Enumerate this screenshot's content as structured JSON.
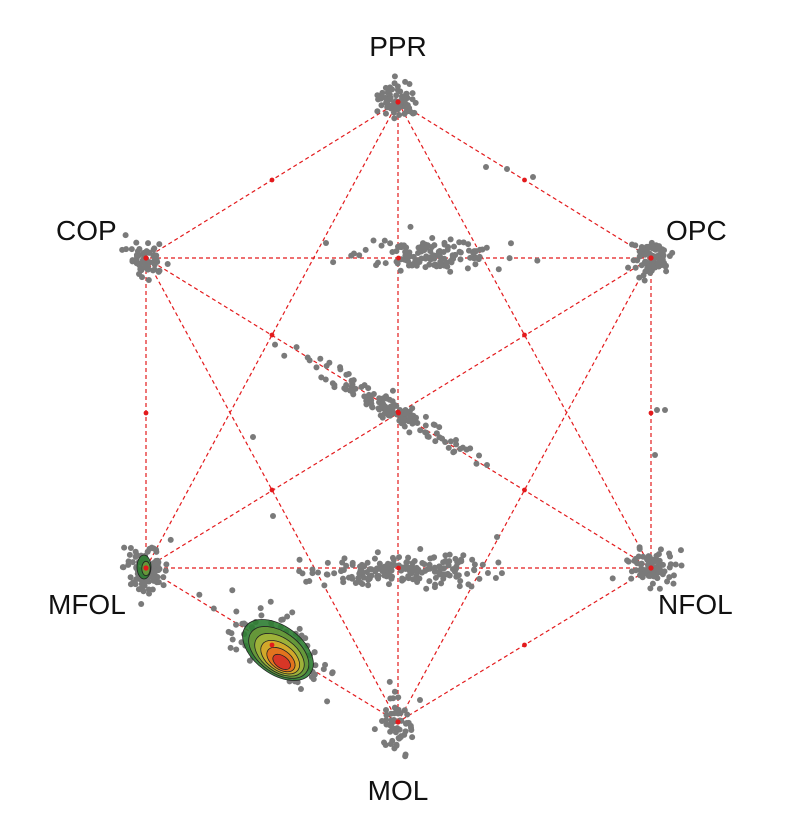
{
  "diagram": {
    "vertices": [
      {
        "id": "PPR",
        "label": "PPR"
      },
      {
        "id": "OPC",
        "label": "OPC"
      },
      {
        "id": "NFOL",
        "label": "NFOL"
      },
      {
        "id": "MOL",
        "label": "MOL"
      },
      {
        "id": "MFOL",
        "label": "MFOL"
      },
      {
        "id": "COP",
        "label": "COP"
      }
    ],
    "colors": {
      "edge": "#e31a1c",
      "point": "#7a7a7a",
      "density": [
        "#2e7d32",
        "#6a9a3a",
        "#a4b53a",
        "#d7a629",
        "#e36d1d",
        "#d73027"
      ]
    }
  }
}
